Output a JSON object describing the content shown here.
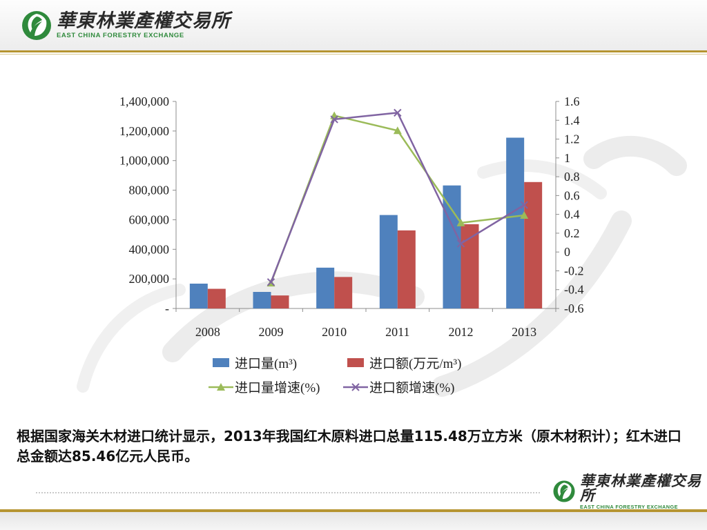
{
  "header": {
    "logo_cn": "華東林業產權交易所",
    "logo_en": "EAST CHINA FORESTRY EXCHANGE"
  },
  "footer": {
    "logo_cn": "華東林業產權交易所",
    "logo_en": "EAST CHINA FORESTRY EXCHANGE"
  },
  "colors": {
    "bar_volume": "#4f81bd",
    "bar_amount": "#c0504d",
    "line_volume_growth": "#9bbb59",
    "line_amount_growth": "#8064a2",
    "gold_rule": "#b59431",
    "logo_green": "#2f8a3c"
  },
  "chart_data": {
    "type": "bar",
    "title": "",
    "xlabel": "",
    "ylabel": "",
    "categories": [
      "2008",
      "2009",
      "2010",
      "2011",
      "2012",
      "2013"
    ],
    "ylim": [
      0,
      1400000
    ],
    "y_ticks": [
      0,
      200000,
      400000,
      600000,
      800000,
      1000000,
      1200000,
      1400000
    ],
    "y_tick_labels": [
      "-",
      "200,000",
      "400,000",
      "600,000",
      "800,000",
      "1,000,000",
      "1,200,000",
      "1,400,000"
    ],
    "y2lim": [
      -0.6,
      1.6
    ],
    "y2_ticks": [
      1.6,
      1.4,
      1.2,
      1,
      0.8,
      0.6,
      0.4,
      0.2,
      0,
      -0.2,
      -0.4,
      -0.6
    ],
    "y2_tick_labels": [
      "1.6",
      "1.4",
      "1.2",
      "1",
      "0.8",
      "0.6",
      "0.4",
      "0.2",
      "0",
      "-0.2",
      "-0.4",
      "-0.6"
    ],
    "grid": false,
    "legend_position": "bottom",
    "series": [
      {
        "name": "进口量(m³)",
        "kind": "bar",
        "axis": "left",
        "values": [
          168000,
          112000,
          276000,
          632000,
          832000,
          1155000
        ]
      },
      {
        "name": "进口额(万元/m³)",
        "kind": "bar",
        "axis": "left",
        "values": [
          133000,
          88000,
          213000,
          528000,
          570000,
          855000
        ]
      },
      {
        "name": "进口量增速(%)",
        "kind": "line",
        "marker": "triangle",
        "axis": "right",
        "values": [
          null,
          -0.33,
          1.45,
          1.29,
          0.31,
          0.39
        ]
      },
      {
        "name": "进口额增速(%)",
        "kind": "line",
        "marker": "x",
        "axis": "right",
        "values": [
          null,
          -0.32,
          1.41,
          1.48,
          0.09,
          0.5
        ]
      }
    ]
  },
  "caption": "根据国家海关木材进口统计显示，2013年我国红木原料进口总量115.48万立方米（原木材积计）；红木进口总金额达85.46亿元人民币。"
}
